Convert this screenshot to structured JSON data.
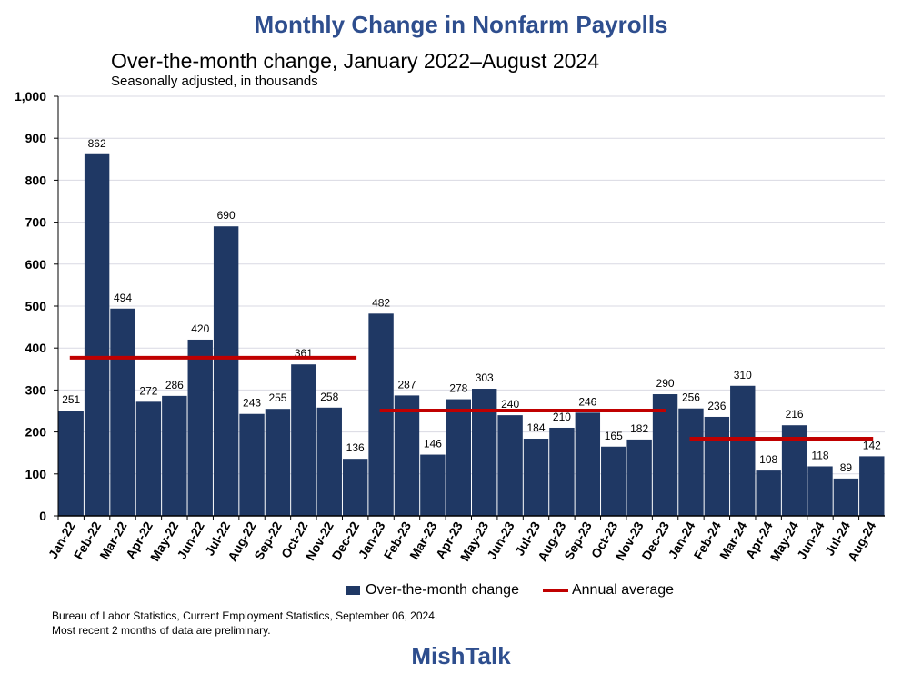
{
  "title": "Monthly Change in Nonfarm Payrolls",
  "subtitle": "Over-the-month change, January 2022–August 2024",
  "note": "Seasonally adjusted, in thousands",
  "source_line1": "Bureau of Labor Statistics, Current Employment Statistics, September 06, 2024.",
  "source_line2": "Most recent 2 months of data are preliminary.",
  "brand": "MishTalk",
  "legend": {
    "bars": "Over-the-month change",
    "line": "Annual average"
  },
  "colors": {
    "bar": "#1f3864",
    "avg": "#c00000",
    "title": "#2e4e8e",
    "grid": "#d9d9e3"
  },
  "chart_data": {
    "type": "bar",
    "categories": [
      "Jan-22",
      "Feb-22",
      "Mar-22",
      "Apr-22",
      "May-22",
      "Jun-22",
      "Jul-22",
      "Aug-22",
      "Sep-22",
      "Oct-22",
      "Nov-22",
      "Dec-22",
      "Jan-23",
      "Feb-23",
      "Mar-23",
      "Apr-23",
      "May-23",
      "Jun-23",
      "Jul-23",
      "Aug-23",
      "Sep-23",
      "Oct-23",
      "Nov-23",
      "Dec-23",
      "Jan-24",
      "Feb-24",
      "Mar-24",
      "Apr-24",
      "May-24",
      "Jun-24",
      "Jul-24",
      "Aug-24"
    ],
    "series": [
      {
        "name": "Over-the-month change",
        "values": [
          251,
          862,
          494,
          272,
          286,
          420,
          690,
          243,
          255,
          361,
          258,
          136,
          482,
          287,
          146,
          278,
          303,
          240,
          184,
          210,
          246,
          165,
          182,
          290,
          256,
          236,
          310,
          108,
          216,
          118,
          89,
          142
        ]
      }
    ],
    "annual_average": [
      {
        "year": "2022",
        "value": 377
      },
      {
        "year": "2023",
        "value": 251
      },
      {
        "year": "2024",
        "value": 184
      }
    ],
    "ylim": [
      0,
      1000
    ],
    "yticks": [
      "0",
      "100",
      "200",
      "300",
      "400",
      "500",
      "600",
      "700",
      "800",
      "900",
      "1,000"
    ],
    "grid": true,
    "legend_position": "bottom"
  }
}
